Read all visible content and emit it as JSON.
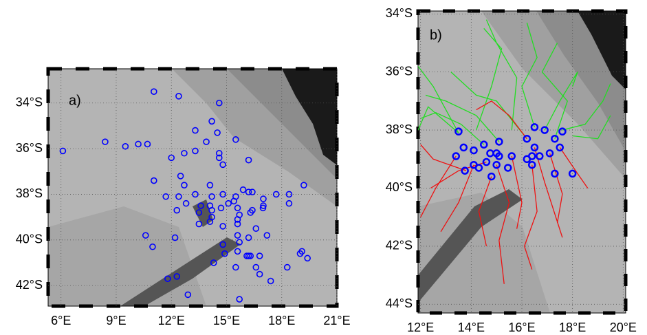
{
  "chart_data": [
    {
      "type": "scatter",
      "label": "a)",
      "xlim": [
        5.3,
        21
      ],
      "ylim": [
        -42.9,
        -32.5
      ],
      "grid": true,
      "xticks": [
        {
          "value": 6,
          "label": "6°E"
        },
        {
          "value": 9,
          "label": "9°E"
        },
        {
          "value": 12,
          "label": "12°E"
        },
        {
          "value": 15,
          "label": "15°E"
        },
        {
          "value": 18,
          "label": "18°E"
        },
        {
          "value": 21,
          "label": "21°E"
        }
      ],
      "yticks": [
        {
          "value": -34,
          "label": "34°S"
        },
        {
          "value": -36,
          "label": "36°S"
        },
        {
          "value": -38,
          "label": "38°S"
        },
        {
          "value": -40,
          "label": "40°S"
        },
        {
          "value": -42,
          "label": "42°S"
        }
      ],
      "series": [
        {
          "color": "#0000ff",
          "x": [
            11.05,
            12.4,
            14.6,
            6.1,
            8.4,
            9.5,
            10.2,
            10.7,
            13.3,
            14.2,
            14.5,
            15.5,
            13.9,
            13.3,
            12.7,
            12.0,
            14.6,
            14.6,
            14.8,
            16.2,
            11.05,
            12.5,
            12.7,
            14.1,
            11.7,
            12.4,
            13.3,
            14.2,
            14.8,
            15.5,
            15.9,
            16.2,
            16.4,
            17.0,
            17.7,
            18.4,
            19.2,
            18.4,
            12.3,
            12.8,
            13.6,
            14.1,
            14.7,
            15.1,
            15.4,
            15.6,
            15.7,
            15.6,
            15.6,
            16.3,
            16.4,
            17.0,
            16.98,
            14.2,
            14.2,
            14.1,
            13.5,
            13.5,
            14.8,
            16.6,
            17.2,
            10.6,
            10.98,
            12.2,
            15.6,
            16.2,
            14.8,
            15.7,
            15.6,
            16.3,
            14.9,
            14.3,
            16.1,
            16.2,
            16.8,
            16.6,
            15.5,
            16.8,
            17.4,
            18.3,
            19.0,
            19.1,
            19.4,
            11.8,
            12.3,
            12.9,
            15.7
          ],
          "y": [
            -33.5,
            -33.7,
            -34.0,
            -36.1,
            -35.7,
            -35.9,
            -35.8,
            -35.8,
            -35.2,
            -34.8,
            -35.3,
            -35.6,
            -35.7,
            -36.1,
            -36.2,
            -36.4,
            -36.2,
            -36.4,
            -36.7,
            -36.5,
            -37.4,
            -37.2,
            -37.6,
            -37.6,
            -38.1,
            -38.1,
            -38.0,
            -38.1,
            -38.0,
            -38.1,
            -37.8,
            -37.9,
            -37.9,
            -38.2,
            -38.0,
            -38.0,
            -37.6,
            -38.4,
            -38.7,
            -38.4,
            -38.5,
            -38.5,
            -38.6,
            -38.4,
            -38.3,
            -38.6,
            -38.9,
            -39.1,
            -39.3,
            -38.8,
            -38.7,
            -38.5,
            -38.6,
            -38.7,
            -39.0,
            -39.2,
            -38.8,
            -39.3,
            -39.4,
            -39.5,
            -39.8,
            -39.8,
            -40.3,
            -39.9,
            -39.8,
            -39.9,
            -40.2,
            -40.1,
            -40.5,
            -40.7,
            -40.6,
            -41.0,
            -40.7,
            -40.7,
            -40.7,
            -41.2,
            -41.2,
            -41.5,
            -41.8,
            -41.2,
            -40.6,
            -40.5,
            -40.8,
            -41.7,
            -41.6,
            -42.4,
            -42.6
          ]
        }
      ],
      "tracks": []
    },
    {
      "type": "scatter",
      "label": "b)",
      "xlim": [
        11.9,
        20.1
      ],
      "ylim": [
        -44.3,
        -33.9
      ],
      "grid": true,
      "xticks": [
        {
          "value": 12,
          "label": "12°E"
        },
        {
          "value": 14,
          "label": "14°E"
        },
        {
          "value": 16,
          "label": "16°E"
        },
        {
          "value": 18,
          "label": "18°E"
        },
        {
          "value": 20,
          "label": "20°E"
        }
      ],
      "yticks": [
        {
          "value": -34,
          "label": "34°S"
        },
        {
          "value": -36,
          "label": "36°S"
        },
        {
          "value": -38,
          "label": "38°S"
        },
        {
          "value": -40,
          "label": "40°S"
        },
        {
          "value": -42,
          "label": "42°S"
        },
        {
          "value": -44,
          "label": "44°S"
        }
      ],
      "tracks": [
        {
          "color": "#22dd22",
          "x": [
            13.5,
            12.5,
            11.9
          ],
          "y": [
            -38.1,
            -36.5,
            -35.8
          ]
        },
        {
          "color": "#22dd22",
          "x": [
            14.2,
            14.8,
            15.2,
            14.5
          ],
          "y": [
            -38.0,
            -36.5,
            -35.2,
            -34.5
          ]
        },
        {
          "color": "#22dd22",
          "x": [
            15.1,
            14.2,
            13.0,
            12.2
          ],
          "y": [
            -38.4,
            -37.5,
            -37.0,
            -36.8
          ]
        },
        {
          "color": "#22dd22",
          "x": [
            16.5,
            16.0,
            16.6,
            16.2
          ],
          "y": [
            -37.9,
            -36.5,
            -35.5,
            -34.3
          ]
        },
        {
          "color": "#22dd22",
          "x": [
            16.9,
            17.5,
            18.2,
            18.0
          ],
          "y": [
            -38.0,
            -37.0,
            -36.0,
            -36.5
          ]
        },
        {
          "color": "#22dd22",
          "x": [
            17.6,
            18.5,
            19.2,
            19.5
          ],
          "y": [
            -38.0,
            -37.8,
            -37.0,
            -36.4
          ]
        },
        {
          "color": "#22dd22",
          "x": [
            15.6,
            15.8,
            15.0,
            14.6
          ],
          "y": [
            -38.0,
            -36.2,
            -35.0,
            -34.2
          ]
        },
        {
          "color": "#22dd22",
          "x": [
            13.5,
            12.3,
            11.9
          ],
          "y": [
            -38.1,
            -37.2,
            -38.0
          ]
        },
        {
          "color": "#22dd22",
          "x": [
            17.3,
            17.8,
            16.8,
            17.4
          ],
          "y": [
            -38.3,
            -37.0,
            -36.0,
            -35.0
          ]
        },
        {
          "color": "#22dd22",
          "x": [
            14.5,
            13.6,
            12.6,
            12.0
          ],
          "y": [
            -38.5,
            -37.8,
            -37.4,
            -37.6
          ]
        },
        {
          "color": "#22dd22",
          "x": [
            16.2,
            15.0,
            14.2,
            13.2
          ],
          "y": [
            -38.3,
            -37.0,
            -36.8,
            -36.0
          ]
        },
        {
          "color": "#22dd22",
          "x": [
            18.0,
            19.0,
            19.5
          ],
          "y": [
            -38.2,
            -38.3,
            -37.5
          ]
        },
        {
          "color": "#ee1111",
          "x": [
            13.4,
            12.6,
            12.0
          ],
          "y": [
            -38.9,
            -40.0,
            -41.0
          ]
        },
        {
          "color": "#ee1111",
          "x": [
            14.1,
            13.5,
            12.8
          ],
          "y": [
            -39.2,
            -40.5,
            -41.5
          ]
        },
        {
          "color": "#ee1111",
          "x": [
            14.8,
            14.3,
            14.6
          ],
          "y": [
            -39.6,
            -40.8,
            -42.0
          ]
        },
        {
          "color": "#ee1111",
          "x": [
            15.6,
            16.0,
            15.8
          ],
          "y": [
            -38.9,
            -40.5,
            -41.4
          ]
        },
        {
          "color": "#ee1111",
          "x": [
            16.4,
            16.6,
            16.1,
            16.4
          ],
          "y": [
            -39.2,
            -40.8,
            -42.0,
            -42.8
          ]
        },
        {
          "color": "#ee1111",
          "x": [
            17.1,
            17.6,
            17.4
          ],
          "y": [
            -38.8,
            -40.2,
            -41.2
          ]
        },
        {
          "color": "#ee1111",
          "x": [
            17.5,
            18.2,
            18.6
          ],
          "y": [
            -38.6,
            -39.5,
            -40.0
          ]
        },
        {
          "color": "#ee1111",
          "x": [
            15.0,
            15.5,
            15.1,
            15.3
          ],
          "y": [
            -39.2,
            -40.5,
            -41.8,
            -43.3
          ]
        },
        {
          "color": "#ee1111",
          "x": [
            14.6,
            13.5,
            12.4
          ],
          "y": [
            -39.1,
            -39.4,
            -40.0
          ]
        },
        {
          "color": "#ee1111",
          "x": [
            16.5,
            16.9,
            17.6
          ],
          "y": [
            -38.6,
            -39.8,
            -41.7
          ]
        },
        {
          "color": "#ee1111",
          "x": [
            13.8,
            12.5,
            12.0
          ],
          "y": [
            -39.4,
            -39.0,
            -38.5
          ]
        },
        {
          "color": "#ee1111",
          "x": [
            16.2,
            15.5,
            14.8,
            14.2
          ],
          "y": [
            -38.3,
            -37.5,
            -37.0,
            -37.3
          ]
        }
      ],
      "series": [
        {
          "color": "#0000ff",
          "x": [
            13.5,
            13.7,
            14.1,
            14.5,
            14.75,
            15.1,
            15.6,
            16.2,
            16.5,
            16.5,
            16.9,
            17.3,
            17.6,
            17.5,
            17.1,
            16.7,
            16.4,
            16.4,
            16.2,
            15.1,
            15.0,
            14.6,
            14.1,
            13.75,
            14.8,
            14.3,
            13.4,
            17.3,
            18.0,
            15.45,
            15.0
          ],
          "y": [
            -38.05,
            -38.6,
            -38.7,
            -38.5,
            -38.8,
            -38.4,
            -38.9,
            -38.3,
            -38.6,
            -37.9,
            -38.0,
            -38.3,
            -38.05,
            -38.6,
            -38.8,
            -38.9,
            -38.9,
            -39.2,
            -39.0,
            -38.9,
            -39.2,
            -39.1,
            -39.2,
            -39.4,
            -39.6,
            -39.3,
            -38.9,
            -39.5,
            -39.5,
            -39.3,
            -38.8
          ]
        }
      ]
    }
  ]
}
